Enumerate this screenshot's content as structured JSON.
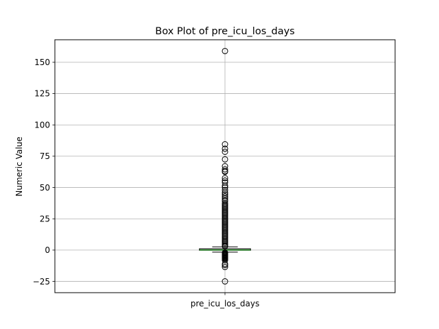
{
  "chart_data": {
    "type": "box",
    "title": "Box Plot of pre_icu_los_days",
    "xlabel": "",
    "ylabel": "Numeric Value",
    "categories": [
      "pre_icu_los_days"
    ],
    "ylim": [
      -34,
      168
    ],
    "yticks": [
      -25,
      0,
      25,
      50,
      75,
      100,
      125,
      150
    ],
    "ytick_labels": [
      "−25",
      "0",
      "25",
      "50",
      "75",
      "100",
      "125",
      "150"
    ],
    "grid": true,
    "box": {
      "q1": -0.1,
      "median": 0.1,
      "q3": 1.0,
      "whisker_low": -1.6,
      "whisker_high": 2.6
    },
    "outliers_high": [
      159,
      84.5,
      81,
      78.5,
      72.5,
      67,
      64.5,
      63,
      62.5,
      57.5,
      55.5,
      54,
      51.5,
      50,
      48,
      46,
      44.5,
      43,
      41.5,
      40,
      39,
      37.5,
      36.5,
      35.5,
      34.5,
      33.5,
      32.5,
      31.5,
      30.5,
      29.5,
      28.5,
      27.5,
      26.5,
      25.5,
      24.5,
      23.5,
      22.5,
      21.5,
      20.5,
      19.5,
      18.5,
      17.5,
      16.5,
      15.5,
      14.5,
      13.5,
      12.5,
      11.5,
      10.5,
      9.5,
      8.5,
      7.5,
      6.5,
      5.5,
      4.5,
      3.5,
      3.0
    ],
    "outliers_low": [
      -2.0,
      -2.5,
      -3.0,
      -3.5,
      -4.0,
      -4.5,
      -5.0,
      -5.5,
      -6.0,
      -6.5,
      -7.0,
      -8.0,
      -11.0,
      -12.0,
      -13.5,
      -25.0
    ],
    "colors": {
      "box": "#000000",
      "median": "#2ca02c",
      "whisker": "#1f77b4",
      "grid": "#b0b0b0",
      "outlier_edge": "#000000"
    }
  }
}
